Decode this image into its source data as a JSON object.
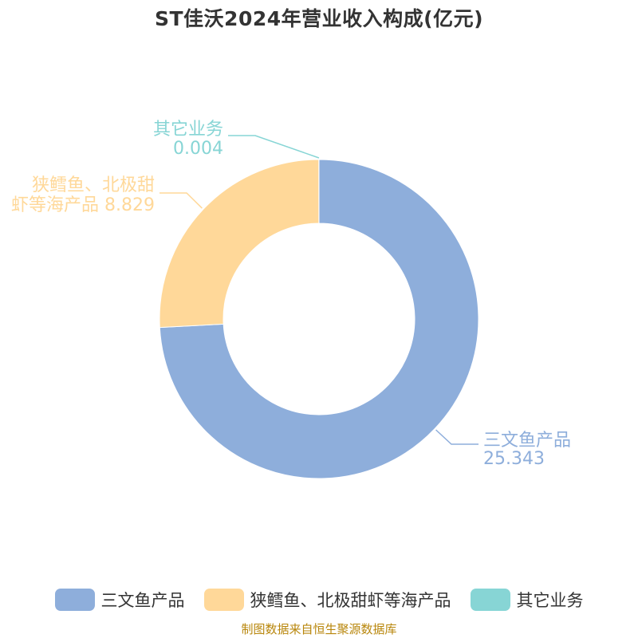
{
  "chart_data": {
    "type": "pie",
    "title": "ST佳沃2024年营业收入构成(亿元)",
    "donut": true,
    "slices": [
      {
        "name": "三文鱼产品",
        "value": 25.343,
        "color": "#8eaedb",
        "label_lines": [
          "三文鱼产品",
          "25.343"
        ]
      },
      {
        "name": "狭鳕鱼、北极甜虾等海产品",
        "value": 8.829,
        "color": "#ffd899",
        "label_lines": [
          "狭鳕鱼、北极甜",
          "虾等海产品 8.829"
        ]
      },
      {
        "name": "其它业务",
        "value": 0.004,
        "color": "#87d5d5",
        "label_lines": [
          "其它业务",
          "0.004"
        ]
      }
    ],
    "legend_position": "bottom"
  },
  "source": "制图数据来自恒生聚源数据库"
}
